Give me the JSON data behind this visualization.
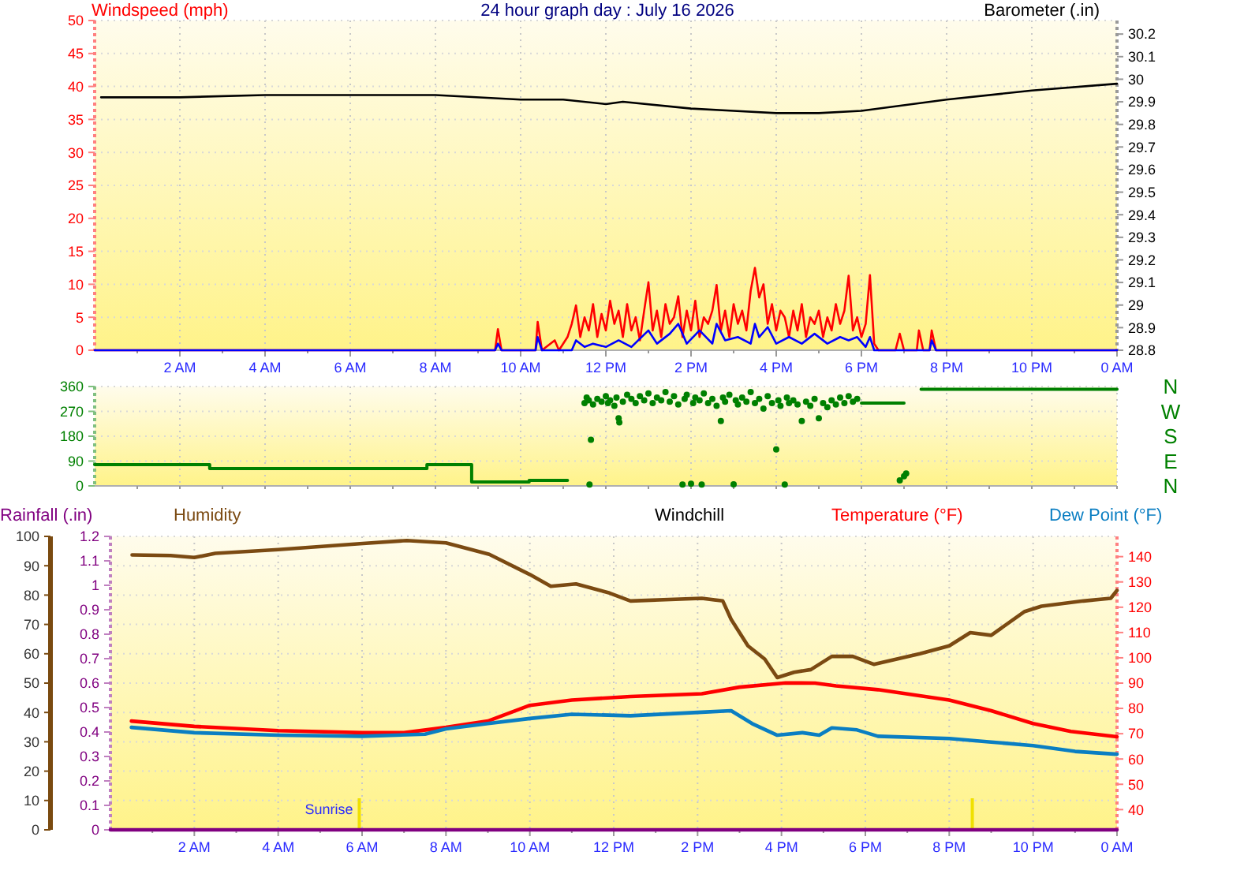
{
  "chart_data": [
    {
      "type": "line",
      "title": "24 hour graph day : July 16 2026",
      "ylabel": "Windspeed (mph)",
      "y2label": "Barometer (.in)",
      "xlim": [
        "2026-07-16T00:00",
        "2026-07-17T00:00"
      ],
      "xticks": [
        {
          "value": "2026-07-16T01:00",
          "label": null
        },
        {
          "value": "2026-07-16T02:00",
          "label": "2 AM"
        },
        {
          "value": "2026-07-16T03:00",
          "label": null
        },
        {
          "value": "2026-07-16T04:00",
          "label": "4 AM"
        },
        {
          "value": "2026-07-16T05:00",
          "label": null
        },
        {
          "value": "2026-07-16T06:00",
          "label": "6 AM"
        },
        {
          "value": "2026-07-16T07:00",
          "label": null
        },
        {
          "value": "2026-07-16T08:00",
          "label": "8 AM"
        },
        {
          "value": "2026-07-16T09:00",
          "label": null
        },
        {
          "value": "2026-07-16T10:00",
          "label": "10 AM"
        },
        {
          "value": "2026-07-16T11:00",
          "label": null
        },
        {
          "value": "2026-07-16T12:00",
          "label": "12 PM"
        },
        {
          "value": "2026-07-16T13:00",
          "label": null
        },
        {
          "value": "2026-07-16T14:00",
          "label": "2 PM"
        },
        {
          "value": "2026-07-16T15:00",
          "label": null
        },
        {
          "value": "2026-07-16T16:00",
          "label": "4 PM"
        },
        {
          "value": "2026-07-16T17:00",
          "label": null
        },
        {
          "value": "2026-07-16T18:00",
          "label": "6 PM"
        },
        {
          "value": "2026-07-16T19:00",
          "label": null
        },
        {
          "value": "2026-07-16T20:00",
          "label": "8 PM"
        },
        {
          "value": "2026-07-16T21:00",
          "label": null
        },
        {
          "value": "2026-07-16T22:00",
          "label": "10 PM"
        },
        {
          "value": "2026-07-16T23:00",
          "label": null
        },
        {
          "value": "2026-07-17T00:00",
          "label": "0 AM"
        }
      ],
      "ylim": [
        0,
        50
      ],
      "yticks": [
        0,
        5,
        10,
        15,
        20,
        25,
        30,
        35,
        40,
        45,
        50
      ],
      "y2lim": [
        28.8,
        30.26
      ],
      "y2ticks": [
        28.8,
        28.9,
        29,
        29.1,
        29.2,
        29.3,
        29.4,
        29.5,
        29.6,
        29.7,
        29.8,
        29.9,
        30,
        30.1,
        30.2
      ],
      "grid": true,
      "series": [
        {
          "color": "#000000",
          "axis": "y2",
          "x": [
            "2026-07-16T00:09",
            "2026-07-16T02:00",
            "2026-07-16T04:00",
            "2026-07-16T06:00",
            "2026-07-16T08:00",
            "2026-07-16T10:00",
            "2026-07-16T11:00",
            "2026-07-16T12:00",
            "2026-07-16T12:24",
            "2026-07-16T14:00",
            "2026-07-16T15:00",
            "2026-07-16T16:00",
            "2026-07-16T17:00",
            "2026-07-16T18:00",
            "2026-07-16T20:00",
            "2026-07-16T22:00",
            "2026-07-17T00:00"
          ],
          "values": [
            29.92,
            29.92,
            29.93,
            29.93,
            29.93,
            29.91,
            29.91,
            29.89,
            29.9,
            29.87,
            29.86,
            29.85,
            29.85,
            29.86,
            29.91,
            29.95,
            29.98
          ]
        },
        {
          "color": "#ff0000",
          "x": [
            "2026-07-16T00:00",
            "2026-07-16T09:24",
            "2026-07-16T09:28",
            "2026-07-16T09:33",
            "2026-07-16T10:21",
            "2026-07-16T10:24",
            "2026-07-16T10:30",
            "2026-07-16T10:48",
            "2026-07-16T10:54",
            "2026-07-16T11:06",
            "2026-07-16T11:12",
            "2026-07-16T11:18",
            "2026-07-16T11:24",
            "2026-07-16T11:30",
            "2026-07-16T11:36",
            "2026-07-16T11:42",
            "2026-07-16T11:48",
            "2026-07-16T11:54",
            "2026-07-16T12:00",
            "2026-07-16T12:06",
            "2026-07-16T12:12",
            "2026-07-16T12:18",
            "2026-07-16T12:24",
            "2026-07-16T12:30",
            "2026-07-16T12:36",
            "2026-07-16T12:42",
            "2026-07-16T12:48",
            "2026-07-16T12:54",
            "2026-07-16T13:00",
            "2026-07-16T13:06",
            "2026-07-16T13:12",
            "2026-07-16T13:18",
            "2026-07-16T13:24",
            "2026-07-16T13:30",
            "2026-07-16T13:36",
            "2026-07-16T13:42",
            "2026-07-16T13:48",
            "2026-07-16T13:54",
            "2026-07-16T14:00",
            "2026-07-16T14:06",
            "2026-07-16T14:12",
            "2026-07-16T14:18",
            "2026-07-16T14:24",
            "2026-07-16T14:30",
            "2026-07-16T14:36",
            "2026-07-16T14:42",
            "2026-07-16T14:48",
            "2026-07-16T14:54",
            "2026-07-16T15:00",
            "2026-07-16T15:06",
            "2026-07-16T15:12",
            "2026-07-16T15:18",
            "2026-07-16T15:24",
            "2026-07-16T15:30",
            "2026-07-16T15:36",
            "2026-07-16T15:42",
            "2026-07-16T15:48",
            "2026-07-16T15:54",
            "2026-07-16T16:00",
            "2026-07-16T16:06",
            "2026-07-16T16:12",
            "2026-07-16T16:18",
            "2026-07-16T16:24",
            "2026-07-16T16:30",
            "2026-07-16T16:36",
            "2026-07-16T16:42",
            "2026-07-16T16:48",
            "2026-07-16T16:54",
            "2026-07-16T17:00",
            "2026-07-16T17:06",
            "2026-07-16T17:12",
            "2026-07-16T17:18",
            "2026-07-16T17:24",
            "2026-07-16T17:30",
            "2026-07-16T17:36",
            "2026-07-16T17:42",
            "2026-07-16T17:48",
            "2026-07-16T17:54",
            "2026-07-16T18:00",
            "2026-07-16T18:06",
            "2026-07-16T18:12",
            "2026-07-16T18:18",
            "2026-07-16T18:24",
            "2026-07-16T18:48",
            "2026-07-16T18:54",
            "2026-07-16T19:00",
            "2026-07-16T19:18",
            "2026-07-16T19:21",
            "2026-07-16T19:27",
            "2026-07-16T19:36",
            "2026-07-16T19:39",
            "2026-07-16T19:45",
            "2026-07-17T00:00"
          ],
          "values": [
            0,
            0,
            3.2,
            0,
            0,
            4.3,
            0,
            1.5,
            0,
            2,
            4,
            6.8,
            2,
            5,
            3,
            7,
            2,
            5.5,
            3,
            7.5,
            4,
            6,
            2,
            7,
            3,
            5,
            1.5,
            6,
            10.3,
            3,
            6,
            2,
            7,
            4,
            5,
            8.2,
            2,
            6,
            3,
            7.5,
            2,
            5,
            4,
            6,
            9.9,
            3,
            6,
            2,
            7,
            4,
            6,
            3,
            9,
            12.5,
            8,
            10,
            4,
            7,
            3,
            6,
            5,
            2,
            6,
            3,
            7,
            2,
            5,
            4,
            6,
            2,
            5,
            3,
            7,
            4,
            6,
            11.3,
            3,
            5,
            2,
            4,
            11.4,
            1,
            0,
            0,
            2.5,
            0,
            0,
            3,
            0,
            0,
            3,
            0,
            0
          ]
        },
        {
          "color": "#0000ff",
          "x": [
            "2026-07-16T00:00",
            "2026-07-16T09:24",
            "2026-07-16T09:28",
            "2026-07-16T09:33",
            "2026-07-16T10:21",
            "2026-07-16T10:24",
            "2026-07-16T10:30",
            "2026-07-16T11:12",
            "2026-07-16T11:18",
            "2026-07-16T11:30",
            "2026-07-16T11:42",
            "2026-07-16T12:00",
            "2026-07-16T12:18",
            "2026-07-16T12:36",
            "2026-07-16T13:00",
            "2026-07-16T13:12",
            "2026-07-16T13:30",
            "2026-07-16T13:42",
            "2026-07-16T13:54",
            "2026-07-16T14:12",
            "2026-07-16T14:30",
            "2026-07-16T14:36",
            "2026-07-16T14:48",
            "2026-07-16T15:06",
            "2026-07-16T15:24",
            "2026-07-16T15:30",
            "2026-07-16T15:36",
            "2026-07-16T15:48",
            "2026-07-16T16:00",
            "2026-07-16T16:18",
            "2026-07-16T16:36",
            "2026-07-16T16:54",
            "2026-07-16T17:12",
            "2026-07-16T17:30",
            "2026-07-16T17:42",
            "2026-07-16T17:54",
            "2026-07-16T18:06",
            "2026-07-16T18:12",
            "2026-07-16T18:18",
            "2026-07-16T19:36",
            "2026-07-16T19:39",
            "2026-07-16T19:45",
            "2026-07-17T00:00"
          ],
          "values": [
            0,
            0,
            1,
            0,
            0,
            2,
            0,
            0,
            1.5,
            0.5,
            1,
            0.5,
            1.5,
            0.5,
            3,
            1,
            2.5,
            4,
            1,
            3,
            1,
            4,
            1.5,
            2,
            1,
            4,
            2,
            3.5,
            1,
            2,
            1,
            2.5,
            1,
            2,
            1.5,
            2,
            0.5,
            2,
            0,
            0,
            1.5,
            0,
            0
          ]
        }
      ]
    },
    {
      "type": "scatter",
      "xlim": [
        "2026-07-16T00:00",
        "2026-07-17T00:00"
      ],
      "xticks": [
        {
          "value": "2026-07-16T01:00",
          "label": null
        },
        {
          "value": "2026-07-16T02:00",
          "label": null
        },
        {
          "value": "2026-07-16T03:00",
          "label": null
        },
        {
          "value": "2026-07-16T04:00",
          "label": null
        },
        {
          "value": "2026-07-16T05:00",
          "label": null
        },
        {
          "value": "2026-07-16T06:00",
          "label": null
        },
        {
          "value": "2026-07-16T07:00",
          "label": null
        },
        {
          "value": "2026-07-16T08:00",
          "label": null
        },
        {
          "value": "2026-07-16T09:00",
          "label": null
        },
        {
          "value": "2026-07-16T10:00",
          "label": null
        },
        {
          "value": "2026-07-16T11:00",
          "label": null
        },
        {
          "value": "2026-07-16T12:00",
          "label": null
        },
        {
          "value": "2026-07-16T13:00",
          "label": null
        },
        {
          "value": "2026-07-16T14:00",
          "label": null
        },
        {
          "value": "2026-07-16T15:00",
          "label": null
        },
        {
          "value": "2026-07-16T16:00",
          "label": null
        },
        {
          "value": "2026-07-16T17:00",
          "label": null
        },
        {
          "value": "2026-07-16T18:00",
          "label": null
        },
        {
          "value": "2026-07-16T19:00",
          "label": null
        },
        {
          "value": "2026-07-16T20:00",
          "label": null
        },
        {
          "value": "2026-07-16T21:00",
          "label": null
        },
        {
          "value": "2026-07-16T22:00",
          "label": null
        },
        {
          "value": "2026-07-16T23:00",
          "label": null
        },
        {
          "value": "2026-07-17T00:00",
          "label": null
        }
      ],
      "ylim": [
        0,
        360
      ],
      "yticks": [
        0,
        90,
        180,
        270,
        360
      ],
      "annotations": [
        "N",
        "W",
        "S",
        "E",
        "N"
      ],
      "tick_labels": "y",
      "grid": true,
      "series": [
        {
          "type": "step",
          "color": "#008000",
          "x": [
            "2026-07-16T00:00",
            "2026-07-16T02:42",
            "2026-07-16T07:48",
            "2026-07-16T08:51",
            "2026-07-16T10:12",
            "2026-07-16T11:06",
            "2026-07-16T11:09",
            "2026-07-16T18:00",
            "2026-07-16T19:00",
            "2026-07-16T19:03",
            "2026-07-16T19:24",
            "2026-07-17T00:00"
          ],
          "values": [
            77,
            63,
            77,
            14,
            20,
            20,
            null,
            300,
            300,
            null,
            350,
            350
          ]
        },
        {
          "color": "#008000",
          "x": [
            "2026-07-16T11:30",
            "2026-07-16T11:33",
            "2026-07-16T11:36",
            "2026-07-16T11:37",
            "2026-07-16T11:39",
            "2026-07-16T11:42",
            "2026-07-16T11:48",
            "2026-07-16T11:54",
            "2026-07-16T12:00",
            "2026-07-16T12:03",
            "2026-07-16T12:06",
            "2026-07-16T12:12",
            "2026-07-16T12:15",
            "2026-07-16T12:18",
            "2026-07-16T12:19",
            "2026-07-16T12:24",
            "2026-07-16T12:30",
            "2026-07-16T12:36",
            "2026-07-16T12:42",
            "2026-07-16T12:48",
            "2026-07-16T12:54",
            "2026-07-16T13:00",
            "2026-07-16T13:06",
            "2026-07-16T13:12",
            "2026-07-16T13:18",
            "2026-07-16T13:24",
            "2026-07-16T13:30",
            "2026-07-16T13:36",
            "2026-07-16T13:42",
            "2026-07-16T13:48",
            "2026-07-16T13:51",
            "2026-07-16T13:54",
            "2026-07-16T14:00",
            "2026-07-16T14:03",
            "2026-07-16T14:06",
            "2026-07-16T14:12",
            "2026-07-16T14:15",
            "2026-07-16T14:18",
            "2026-07-16T14:24",
            "2026-07-16T14:30",
            "2026-07-16T14:36",
            "2026-07-16T14:42",
            "2026-07-16T14:45",
            "2026-07-16T14:48",
            "2026-07-16T14:54",
            "2026-07-16T15:00",
            "2026-07-16T15:03",
            "2026-07-16T15:06",
            "2026-07-16T15:12",
            "2026-07-16T15:18",
            "2026-07-16T15:24",
            "2026-07-16T15:30",
            "2026-07-16T15:36",
            "2026-07-16T15:42",
            "2026-07-16T15:48",
            "2026-07-16T15:54",
            "2026-07-16T16:00",
            "2026-07-16T16:03",
            "2026-07-16T16:06",
            "2026-07-16T16:12",
            "2026-07-16T16:15",
            "2026-07-16T16:18",
            "2026-07-16T16:24",
            "2026-07-16T16:30",
            "2026-07-16T16:36",
            "2026-07-16T16:42",
            "2026-07-16T16:48",
            "2026-07-16T16:54",
            "2026-07-16T17:00",
            "2026-07-16T17:06",
            "2026-07-16T17:12",
            "2026-07-16T17:18",
            "2026-07-16T17:24",
            "2026-07-16T17:30",
            "2026-07-16T17:36",
            "2026-07-16T17:42",
            "2026-07-16T17:48",
            "2026-07-16T17:54",
            "2026-07-16T18:54",
            "2026-07-16T19:00",
            "2026-07-16T19:03"
          ],
          "values": [
            300,
            320,
            310,
            5,
            167,
            295,
            315,
            305,
            325,
            300,
            310,
            290,
            320,
            245,
            230,
            305,
            330,
            315,
            300,
            325,
            310,
            335,
            300,
            320,
            310,
            340,
            305,
            325,
            295,
            5,
            315,
            330,
            8,
            300,
            320,
            310,
            5,
            335,
            300,
            315,
            290,
            235,
            320,
            305,
            330,
            6,
            310,
            295,
            320,
            305,
            340,
            300,
            315,
            280,
            325,
            300,
            132,
            310,
            290,
            5,
            320,
            300,
            310,
            295,
            235,
            305,
            290,
            315,
            245,
            300,
            285,
            310,
            295,
            320,
            300,
            325,
            305,
            315,
            20,
            35,
            45
          ]
        }
      ]
    },
    {
      "type": "line",
      "xlim": [
        "2026-07-16T00:00",
        "2026-07-17T00:00"
      ],
      "xticks": [
        {
          "value": "2026-07-16T01:00",
          "label": null
        },
        {
          "value": "2026-07-16T02:00",
          "label": "2 AM"
        },
        {
          "value": "2026-07-16T03:00",
          "label": null
        },
        {
          "value": "2026-07-16T04:00",
          "label": "4 AM"
        },
        {
          "value": "2026-07-16T05:00",
          "label": null
        },
        {
          "value": "2026-07-16T06:00",
          "label": "6 AM"
        },
        {
          "value": "2026-07-16T07:00",
          "label": null
        },
        {
          "value": "2026-07-16T08:00",
          "label": "8 AM"
        },
        {
          "value": "2026-07-16T09:00",
          "label": null
        },
        {
          "value": "2026-07-16T10:00",
          "label": "10 AM"
        },
        {
          "value": "2026-07-16T11:00",
          "label": null
        },
        {
          "value": "2026-07-16T12:00",
          "label": "12 PM"
        },
        {
          "value": "2026-07-16T13:00",
          "label": null
        },
        {
          "value": "2026-07-16T14:00",
          "label": "2 PM"
        },
        {
          "value": "2026-07-16T15:00",
          "label": null
        },
        {
          "value": "2026-07-16T16:00",
          "label": "4 PM"
        },
        {
          "value": "2026-07-16T17:00",
          "label": null
        },
        {
          "value": "2026-07-16T18:00",
          "label": "6 PM"
        },
        {
          "value": "2026-07-16T19:00",
          "label": null
        },
        {
          "value": "2026-07-16T20:00",
          "label": "8 PM"
        },
        {
          "value": "2026-07-16T21:00",
          "label": null
        },
        {
          "value": "2026-07-16T22:00",
          "label": "10 PM"
        },
        {
          "value": "2026-07-16T23:00",
          "label": null
        },
        {
          "value": "2026-07-17T00:00",
          "label": "0 AM"
        }
      ],
      "ylim": [
        0,
        100
      ],
      "yticks": [
        0,
        10,
        20,
        30,
        40,
        50,
        60,
        70,
        80,
        90,
        100
      ],
      "y2lim": [
        0,
        1.2
      ],
      "y2ticks": [
        0,
        0.1,
        0.2,
        0.3,
        0.4,
        0.5,
        0.6,
        0.7,
        0.8,
        0.9,
        1,
        1.1,
        1.2
      ],
      "y3lim": [
        32,
        148
      ],
      "y3ticks": [
        40,
        50,
        60,
        70,
        80,
        90,
        100,
        110,
        120,
        130,
        140
      ],
      "grid": true,
      "legend": "top",
      "annotations": [
        "Windchill"
      ],
      "ref_lines": [
        {
          "axis": "x",
          "value": "2026-07-16T05:56",
          "label": "Sunrise",
          "color": "#f0e000"
        },
        {
          "axis": "x",
          "value": "2026-07-16T20:33",
          "color": "#f0e000"
        }
      ],
      "series": [
        {
          "name": "Rainfall (.in)",
          "color": "#800080",
          "axis": "y2",
          "x": [
            "2026-07-16T00:00",
            "2026-07-17T00:00"
          ],
          "values": [
            0,
            0
          ]
        },
        {
          "name": "Humidity",
          "color": "#7b4a12",
          "x": [
            "2026-07-16T00:31",
            "2026-07-16T01:26",
            "2026-07-16T02:00",
            "2026-07-16T02:30",
            "2026-07-16T04:00",
            "2026-07-16T05:57",
            "2026-07-16T07:04",
            "2026-07-16T08:00",
            "2026-07-16T09:02",
            "2026-07-16T10:00",
            "2026-07-16T10:30",
            "2026-07-16T11:06",
            "2026-07-16T11:54",
            "2026-07-16T12:24",
            "2026-07-16T14:06",
            "2026-07-16T14:36",
            "2026-07-16T14:48",
            "2026-07-16T15:12",
            "2026-07-16T15:36",
            "2026-07-16T15:54",
            "2026-07-16T16:18",
            "2026-07-16T16:42",
            "2026-07-16T17:12",
            "2026-07-16T17:42",
            "2026-07-16T18:12",
            "2026-07-16T19:18",
            "2026-07-16T20:00",
            "2026-07-16T20:30",
            "2026-07-16T21:00",
            "2026-07-16T21:48",
            "2026-07-16T22:12",
            "2026-07-16T23:12",
            "2026-07-16T23:51",
            "2026-07-17T00:00"
          ],
          "values": [
            93.7,
            93.5,
            92.8,
            94.2,
            95.5,
            97.5,
            98.6,
            97.8,
            93.9,
            87,
            83,
            83.8,
            80.7,
            78,
            78.9,
            78,
            71.7,
            62.7,
            58.2,
            51.9,
            53.7,
            54.6,
            59.1,
            59.1,
            56.4,
            60,
            62.7,
            67.2,
            66.3,
            74.4,
            76.2,
            78,
            78.9,
            81.6
          ]
        },
        {
          "name": "Temperature (°F)",
          "color": "#ff0000",
          "axis": "y3",
          "x": [
            "2026-07-16T00:30",
            "2026-07-16T02:00",
            "2026-07-16T04:00",
            "2026-07-16T06:00",
            "2026-07-16T07:00",
            "2026-07-16T08:00",
            "2026-07-16T09:00",
            "2026-07-16T10:00",
            "2026-07-16T11:00",
            "2026-07-16T12:24",
            "2026-07-16T14:06",
            "2026-07-16T15:00",
            "2026-07-16T16:06",
            "2026-07-16T16:48",
            "2026-07-16T17:18",
            "2026-07-16T18:18",
            "2026-07-16T20:00",
            "2026-07-16T21:00",
            "2026-07-16T22:00",
            "2026-07-16T22:54",
            "2026-07-17T00:00"
          ],
          "values": [
            75,
            72.9,
            71.2,
            70.4,
            70.4,
            72.5,
            75,
            81.2,
            83.3,
            84.7,
            85.8,
            88.4,
            90.1,
            90,
            88.9,
            87.4,
            83.3,
            79.1,
            74,
            70.9,
            68.8
          ]
        },
        {
          "name": "Dew Point (°F)",
          "color": "#0a7ec2",
          "axis": "y3",
          "x": [
            "2026-07-16T00:30",
            "2026-07-16T02:00",
            "2026-07-16T04:00",
            "2026-07-16T06:00",
            "2026-07-16T07:30",
            "2026-07-16T08:00",
            "2026-07-16T09:00",
            "2026-07-16T10:00",
            "2026-07-16T11:00",
            "2026-07-16T12:24",
            "2026-07-16T14:06",
            "2026-07-16T14:48",
            "2026-07-16T15:18",
            "2026-07-16T15:54",
            "2026-07-16T16:30",
            "2026-07-16T16:54",
            "2026-07-16T17:12",
            "2026-07-16T17:48",
            "2026-07-16T18:18",
            "2026-07-16T20:00",
            "2026-07-16T21:00",
            "2026-07-16T22:00",
            "2026-07-16T23:00",
            "2026-07-17T00:00"
          ],
          "values": [
            72.5,
            70.4,
            69.4,
            69,
            69.8,
            71.9,
            74,
            76,
            77.7,
            77.1,
            78.5,
            79.1,
            74,
            69.4,
            70.4,
            69.4,
            72.3,
            71.5,
            69,
            68.1,
            66.7,
            65.3,
            63,
            61.9
          ]
        }
      ]
    }
  ]
}
